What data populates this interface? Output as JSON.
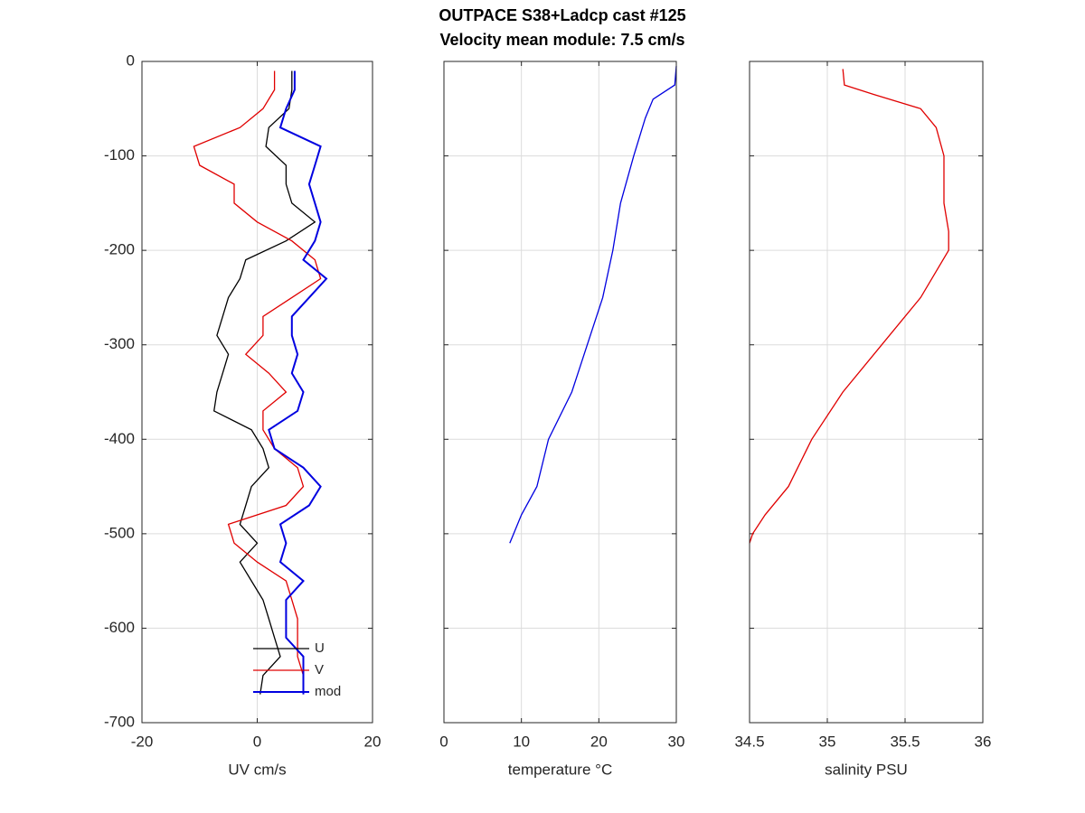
{
  "title": [
    "OUTPACE S38+Ladcp cast #125",
    "Velocity mean module:  7.5 cm/s"
  ],
  "chart_data": [
    {
      "type": "line",
      "xlabel": "UV cm/s",
      "y": [
        -10,
        -30,
        -50,
        -70,
        -90,
        -110,
        -130,
        -150,
        -170,
        -190,
        -210,
        -230,
        -250,
        -270,
        -290,
        -310,
        -330,
        -350,
        -370,
        -390,
        -410,
        -430,
        -450,
        -470,
        -490,
        -510,
        -530,
        -550,
        -570,
        -590,
        -610,
        -630,
        -650,
        -670
      ],
      "series": [
        {
          "name": "U",
          "color": "#000000",
          "values": [
            6,
            6,
            5.5,
            2,
            1.5,
            5,
            5,
            6,
            10,
            5,
            -2,
            -3,
            -5,
            -6,
            -7,
            -5,
            -6,
            -7,
            -7.5,
            -1,
            1,
            2,
            -1,
            -2,
            -3,
            0,
            -3,
            -1,
            1,
            2,
            3,
            4,
            1,
            0.5
          ]
        },
        {
          "name": "V",
          "color": "#e00000",
          "values": [
            3,
            3,
            1,
            -3,
            -11,
            -10,
            -4,
            -4,
            0,
            6,
            10,
            11,
            6,
            1,
            1,
            -2,
            2,
            5,
            1,
            1,
            3,
            7,
            8,
            5,
            -5,
            -4,
            0,
            5,
            6,
            7,
            7,
            7,
            8,
            8
          ]
        },
        {
          "name": "mod",
          "color": "#0000e0",
          "values": [
            6.5,
            6.5,
            5,
            4,
            11,
            10,
            9,
            10,
            11,
            10,
            8,
            12,
            9,
            6,
            6,
            7,
            6,
            8,
            7,
            2,
            3,
            8,
            11,
            9,
            4,
            5,
            4,
            8,
            5,
            5,
            5,
            8,
            8,
            8
          ]
        }
      ],
      "xlim": [
        -20,
        20
      ],
      "xticks": [
        -20,
        0,
        20
      ],
      "ylim": [
        -700,
        0
      ],
      "yticks": [
        -700,
        -600,
        -500,
        -400,
        -300,
        -200,
        -100,
        0
      ],
      "show_ytick_labels": true,
      "grid": true,
      "legend": "lower right"
    },
    {
      "type": "line",
      "xlabel": "temperature °C",
      "y": [
        -5,
        -25,
        -40,
        -60,
        -100,
        -150,
        -200,
        -250,
        -300,
        -350,
        -400,
        -450,
        -480,
        -500,
        -510
      ],
      "series": [
        {
          "color": "#0000e0",
          "values": [
            30,
            29.8,
            27,
            26,
            24.5,
            22.8,
            21.8,
            20.5,
            18.5,
            16.5,
            13.5,
            12,
            10,
            9,
            8.5
          ]
        }
      ],
      "xlim": [
        0,
        30
      ],
      "xticks": [
        0,
        10,
        20,
        30
      ],
      "ylim": [
        -700,
        0
      ],
      "yticks": [
        -700,
        -600,
        -500,
        -400,
        -300,
        -200,
        -100,
        0
      ],
      "show_ytick_labels": false,
      "grid": true
    },
    {
      "type": "line",
      "xlabel": "salinity PSU",
      "y": [
        -8,
        -25,
        -35,
        -50,
        -70,
        -100,
        -150,
        -180,
        -200,
        -250,
        -300,
        -350,
        -400,
        -450,
        -480,
        -500,
        -510
      ],
      "series": [
        {
          "color": "#e00000",
          "values": [
            35.1,
            35.11,
            35.3,
            35.6,
            35.7,
            35.75,
            35.75,
            35.78,
            35.78,
            35.6,
            35.35,
            35.1,
            34.9,
            34.75,
            34.6,
            34.52,
            34.5
          ]
        }
      ],
      "xlim": [
        34.5,
        36
      ],
      "xticks": [
        34.5,
        35,
        35.5,
        36
      ],
      "ylim": [
        -700,
        0
      ],
      "yticks": [
        -700,
        -600,
        -500,
        -400,
        -300,
        -200,
        -100,
        0
      ],
      "show_ytick_labels": false,
      "grid": true
    }
  ]
}
